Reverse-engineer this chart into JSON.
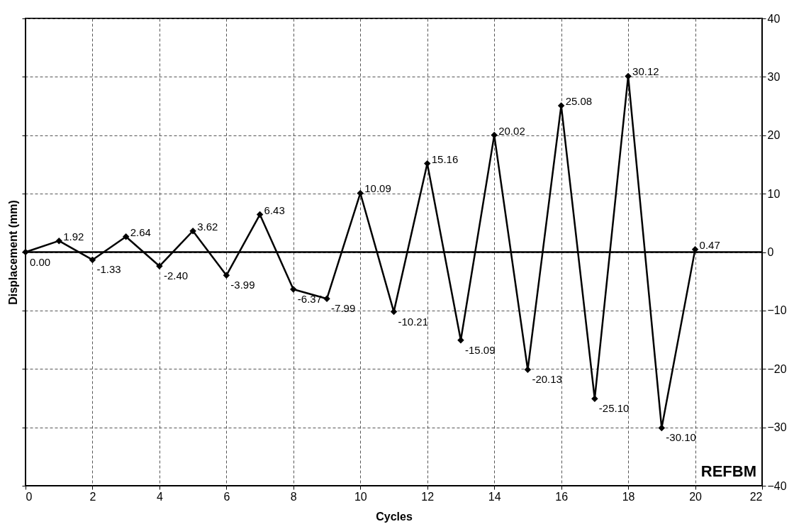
{
  "chart_data": {
    "type": "line",
    "xlabel": "Cycles",
    "ylabel": "Displacement (mm)",
    "x": [
      0,
      1,
      2,
      3,
      4,
      5,
      6,
      7,
      8,
      9,
      10,
      11,
      12,
      13,
      14,
      15,
      16,
      17,
      18,
      19,
      20
    ],
    "series": [
      {
        "color": "#000000",
        "values": [
          0.0,
          1.92,
          -1.33,
          2.64,
          -2.4,
          3.62,
          -3.99,
          6.43,
          -6.37,
          -7.99,
          10.09,
          -10.21,
          15.16,
          -15.09,
          20.02,
          -20.13,
          25.08,
          -25.1,
          30.12,
          -30.1,
          0.47
        ],
        "value_labels": [
          "0.00",
          "1.92",
          "-1.33",
          "2.64",
          "-2.40",
          "3.62",
          "-3.99",
          "6.43",
          "-6.37",
          "-7.99",
          "10.09",
          "-10.21",
          "15.16",
          "-15.09",
          "20.02",
          "-20.13",
          "25.08",
          "-25.10",
          "30.12",
          "-30.10",
          "0.47"
        ]
      }
    ],
    "xlim": [
      0,
      22
    ],
    "xticks": [
      0,
      2,
      4,
      6,
      8,
      10,
      12,
      14,
      16,
      18,
      20,
      22
    ],
    "ylim": [
      -40,
      40
    ],
    "yticks": [
      -40,
      -30,
      -20,
      -10,
      0,
      10,
      20,
      30,
      40
    ],
    "ref_lines": [
      {
        "axis": "y",
        "value": 0
      }
    ],
    "annotations": [
      "REFBM"
    ],
    "grid": true,
    "marker": "diamond",
    "line_style": "solid"
  }
}
